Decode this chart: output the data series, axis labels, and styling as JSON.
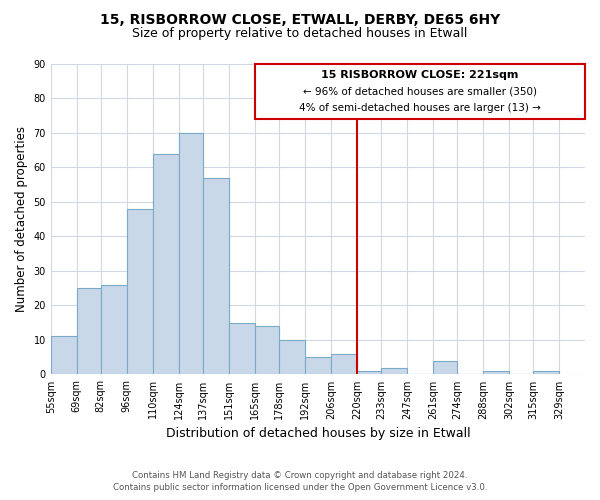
{
  "title": "15, RISBORROW CLOSE, ETWALL, DERBY, DE65 6HY",
  "subtitle": "Size of property relative to detached houses in Etwall",
  "xlabel": "Distribution of detached houses by size in Etwall",
  "ylabel": "Number of detached properties",
  "bar_labels": [
    "55sqm",
    "69sqm",
    "82sqm",
    "96sqm",
    "110sqm",
    "124sqm",
    "137sqm",
    "151sqm",
    "165sqm",
    "178sqm",
    "192sqm",
    "206sqm",
    "220sqm",
    "233sqm",
    "247sqm",
    "261sqm",
    "274sqm",
    "288sqm",
    "302sqm",
    "315sqm",
    "329sqm"
  ],
  "bar_heights": [
    11,
    25,
    26,
    48,
    64,
    70,
    57,
    15,
    14,
    10,
    5,
    6,
    1,
    2,
    0,
    4,
    0,
    1,
    0,
    1
  ],
  "bar_edges": [
    55,
    69,
    82,
    96,
    110,
    124,
    137,
    151,
    165,
    178,
    192,
    206,
    220,
    233,
    247,
    261,
    274,
    288,
    302,
    315,
    329
  ],
  "bar_color": "#c8d8e8",
  "bar_edge_color": "#7aaac8",
  "vline_x": 220,
  "vline_color": "#cc0000",
  "annotation_title": "15 RISBORROW CLOSE: 221sqm",
  "annotation_line1": "← 96% of detached houses are smaller (350)",
  "annotation_line2": "4% of semi-detached houses are larger (13) →",
  "annotation_box_color": "#ffffff",
  "annotation_border_color": "#cc0000",
  "ylim": [
    0,
    90
  ],
  "yticks": [
    0,
    10,
    20,
    30,
    40,
    50,
    60,
    70,
    80,
    90
  ],
  "footer1": "Contains HM Land Registry data © Crown copyright and database right 2024.",
  "footer2": "Contains public sector information licensed under the Open Government Licence v3.0.",
  "background_color": "#ffffff",
  "grid_color": "#d0d8e4"
}
